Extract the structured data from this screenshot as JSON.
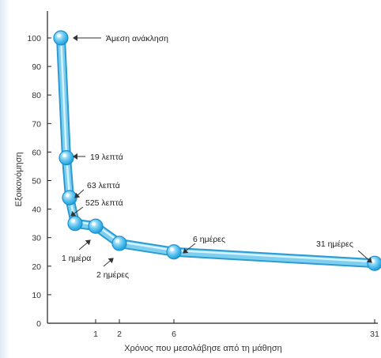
{
  "chart_data": {
    "type": "line",
    "xlabel": "Χρόνος που μεσολάβησε από τη μάθηση",
    "ylabel": "Εξοικονόμηση",
    "ylim": [
      0,
      100
    ],
    "y_ticks": [
      "0",
      "10",
      "20",
      "30",
      "40",
      "50",
      "60",
      "70",
      "80",
      "90",
      "100"
    ],
    "x_ticks": [
      "1",
      "2",
      "6",
      "31"
    ],
    "points": [
      {
        "t": "0",
        "y": 100
      },
      {
        "t": "19m",
        "y": 58
      },
      {
        "t": "63m",
        "y": 44
      },
      {
        "t": "525m",
        "y": 35
      },
      {
        "t": "1d",
        "y": 34
      },
      {
        "t": "2d",
        "y": 28
      },
      {
        "t": "6d",
        "y": 25
      },
      {
        "t": "31d",
        "y": 21
      }
    ],
    "annotations": [
      "Άμεση ανάκληση",
      "19 λεπτά",
      "63 λεπτά",
      "525 λεπτά",
      "1 ημέρα",
      "2 ημέρες",
      "6 ημέρες",
      "31 ημέρες"
    ],
    "grid": false,
    "line_color": "#7fd0ef",
    "point_color": "#45b8ec"
  }
}
